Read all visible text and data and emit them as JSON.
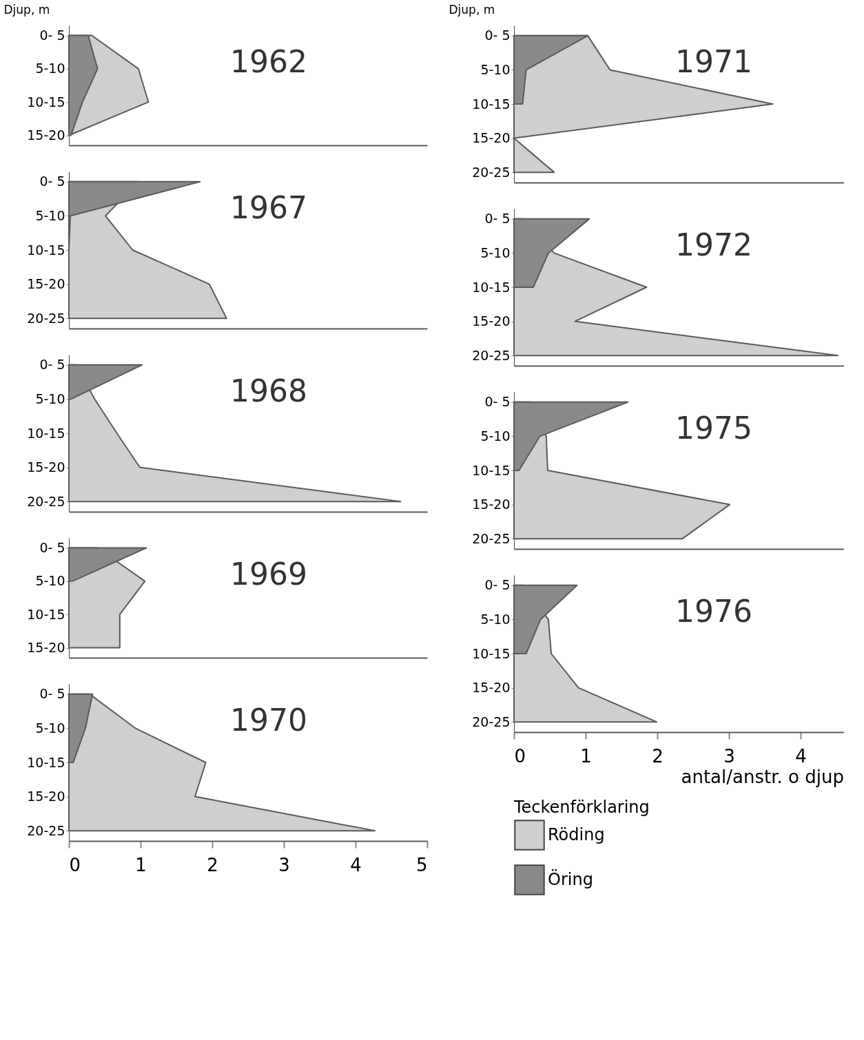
{
  "chart_data": [
    {
      "type": "area",
      "orientation": "horizontal",
      "title": "1962",
      "ylabel": "Djup, m",
      "categories": [
        "0- 5",
        "5-10",
        "10-15",
        "15-20"
      ],
      "series": [
        {
          "color": "#cfcfcf",
          "values": [
            0.32,
            0.97,
            1.11,
            0
          ]
        },
        {
          "color": "#8a8a8a",
          "values": [
            0.27,
            0.4,
            0.19,
            0.03
          ]
        }
      ],
      "xlim": [
        0,
        5
      ],
      "xticks": [
        0,
        1,
        2,
        3,
        4,
        5
      ],
      "tick_labels": "y",
      "legend": false,
      "grid": false
    },
    {
      "type": "area",
      "orientation": "horizontal",
      "title": "1971",
      "ylabel": "Djup, m",
      "categories": [
        "0- 5",
        "5-10",
        "10-15",
        "15-20",
        "20-25"
      ],
      "series": [
        {
          "color": "#cfcfcf",
          "values": [
            1.03,
            1.34,
            3.61,
            0,
            0.56
          ]
        },
        {
          "color": "#8a8a8a",
          "values": [
            1.03,
            0.17,
            0.12,
            null,
            null
          ]
        }
      ],
      "xlim": [
        0,
        4.6
      ],
      "xticks": [
        0,
        1,
        2,
        3,
        4
      ],
      "tick_labels": "y",
      "legend": false,
      "grid": false
    },
    {
      "type": "area",
      "orientation": "horizontal",
      "title": "1967",
      "categories": [
        "0- 5",
        "5-10",
        "10-15",
        "15-20",
        "20-25"
      ],
      "series": [
        {
          "color": "#cfcfcf",
          "values": [
            0.97,
            0.51,
            0.89,
            1.96,
            2.2
          ]
        },
        {
          "color": "#8a8a8a",
          "values": [
            1.83,
            0.02,
            0,
            null,
            null
          ]
        }
      ],
      "xlim": [
        0,
        5
      ],
      "xticks": [
        0,
        1,
        2,
        3,
        4,
        5
      ],
      "tick_labels": "y",
      "legend": false,
      "grid": false
    },
    {
      "type": "area",
      "orientation": "horizontal",
      "title": "1972",
      "categories": [
        "0- 5",
        "5-10",
        "10-15",
        "15-20",
        "20-25"
      ],
      "series": [
        {
          "color": "#cfcfcf",
          "values": [
            0.14,
            0.56,
            1.85,
            0.85,
            4.52
          ]
        },
        {
          "color": "#8a8a8a",
          "values": [
            1.05,
            0.48,
            0.27,
            null,
            null
          ]
        }
      ],
      "xlim": [
        0,
        4.6
      ],
      "xticks": [
        0,
        1,
        2,
        3,
        4
      ],
      "tick_labels": "y",
      "legend": false,
      "grid": false
    },
    {
      "type": "area",
      "orientation": "horizontal",
      "title": "1968",
      "categories": [
        "0- 5",
        "5-10",
        "10-15",
        "15-20",
        "20-25"
      ],
      "series": [
        {
          "color": "#cfcfcf",
          "values": [
            0.1,
            0.36,
            0.67,
            0.99,
            4.63
          ]
        },
        {
          "color": "#8a8a8a",
          "values": [
            1.02,
            0.03,
            null,
            null,
            null
          ]
        }
      ],
      "xlim": [
        0,
        5
      ],
      "xticks": [
        0,
        1,
        2,
        3,
        4,
        5
      ],
      "tick_labels": "y",
      "legend": false,
      "grid": false
    },
    {
      "type": "area",
      "orientation": "horizontal",
      "title": "1975",
      "categories": [
        "0- 5",
        "5-10",
        "10-15",
        "15-20",
        "20-25"
      ],
      "series": [
        {
          "color": "#cfcfcf",
          "values": [
            0.23,
            0.45,
            0.47,
            3.01,
            2.35
          ]
        },
        {
          "color": "#8a8a8a",
          "values": [
            1.59,
            0.36,
            0.07,
            null,
            null
          ]
        }
      ],
      "xlim": [
        0,
        4.6
      ],
      "xticks": [
        0,
        1,
        2,
        3,
        4
      ],
      "tick_labels": "y",
      "legend": false,
      "grid": false
    },
    {
      "type": "area",
      "orientation": "horizontal",
      "title": "1969",
      "categories": [
        "0- 5",
        "5-10",
        "10-15",
        "15-20"
      ],
      "series": [
        {
          "color": "#cfcfcf",
          "values": [
            0.4,
            1.06,
            0.71,
            0.71
          ]
        },
        {
          "color": "#8a8a8a",
          "values": [
            1.08,
            0.05,
            null,
            null
          ]
        }
      ],
      "xlim": [
        0,
        5
      ],
      "xticks": [
        0,
        1,
        2,
        3,
        4,
        5
      ],
      "tick_labels": "y",
      "legend": false,
      "grid": false
    },
    {
      "type": "area",
      "orientation": "horizontal",
      "title": "1976",
      "xlabel": "antal/anstr. o djup",
      "legend_title": "Teckenförklaring",
      "categories": [
        "0- 5",
        "5-10",
        "10-15",
        "15-20",
        "20-25"
      ],
      "series": [
        {
          "name": "Röding",
          "color": "#cfcfcf",
          "values": [
            0.12,
            0.48,
            0.52,
            0.9,
            1.99
          ]
        },
        {
          "name": "Öring",
          "color": "#8a8a8a",
          "values": [
            0.88,
            0.37,
            0.17,
            null,
            null
          ]
        }
      ],
      "xlim": [
        0,
        4.6
      ],
      "xticks": [
        0,
        1,
        2,
        3,
        4
      ],
      "legend": "bottom",
      "grid": false
    },
    {
      "type": "area",
      "orientation": "horizontal",
      "title": "1970",
      "categories": [
        "0- 5",
        "5-10",
        "10-15",
        "15-20",
        "20-25"
      ],
      "series": [
        {
          "color": "#cfcfcf",
          "values": [
            0.29,
            0.93,
            1.91,
            1.76,
            4.27
          ]
        },
        {
          "color": "#8a8a8a",
          "values": [
            0.33,
            0.23,
            0.06,
            null,
            null
          ]
        }
      ],
      "xlim": [
        0,
        5
      ],
      "xticks": [
        0,
        1,
        2,
        3,
        4,
        5
      ],
      "legend": false,
      "grid": false
    }
  ]
}
